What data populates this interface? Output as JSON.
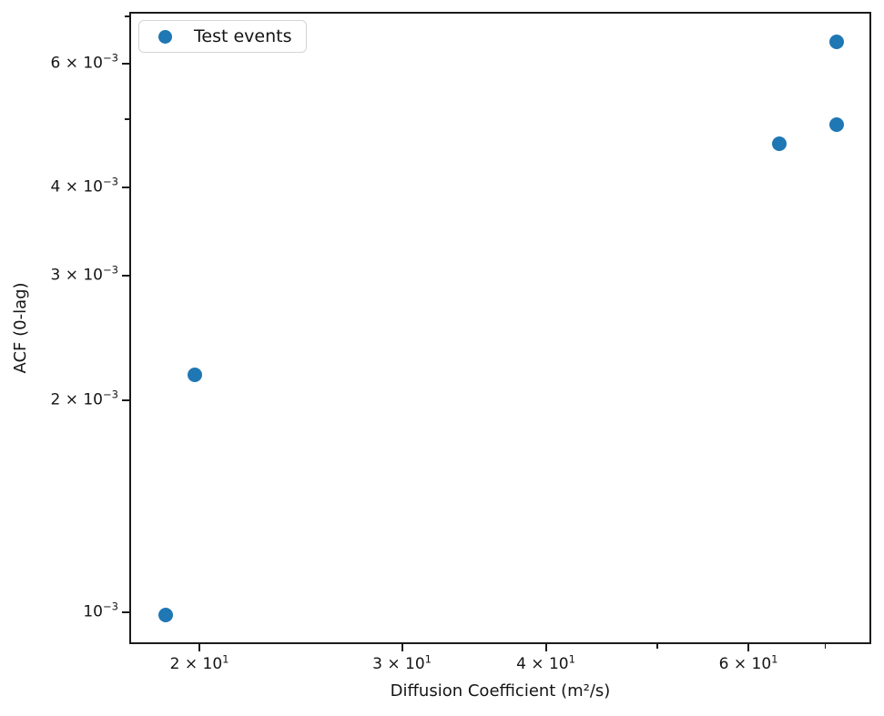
{
  "figure": {
    "background": "#ffffff"
  },
  "chart_data": {
    "type": "scatter",
    "title": "",
    "xlabel": "Diffusion Coefficient (m²/s)",
    "ylabel": "ACF (0-lag)",
    "xscale": "log",
    "yscale": "log",
    "xlim": [
      17.38,
      76.72
    ],
    "ylim": [
      0.0009015,
      0.007105
    ],
    "grid": false,
    "axis_color": "#1b1b1b",
    "text_color": "#151515",
    "legend": {
      "position": "upper-left",
      "entries": [
        {
          "label": "Test events",
          "marker": "circle-icon",
          "color": "#1f77b4"
        }
      ]
    },
    "series": [
      {
        "name": "Test events",
        "color": "#1f77b4",
        "marker": "circle",
        "points": [
          {
            "x": 18.7,
            "y": 0.00099
          },
          {
            "x": 19.8,
            "y": 0.00217
          },
          {
            "x": 63.8,
            "y": 0.00462
          },
          {
            "x": 71.6,
            "y": 0.00492
          },
          {
            "x": 71.6,
            "y": 0.00644
          }
        ]
      }
    ],
    "x_ticks": [
      {
        "value": 20,
        "major": true,
        "mantissa": "2 × 10",
        "exponent": "1"
      },
      {
        "value": 30,
        "major": true,
        "mantissa": "3 × 10",
        "exponent": "1"
      },
      {
        "value": 40,
        "major": true,
        "mantissa": "4 × 10",
        "exponent": "1"
      },
      {
        "value": 50,
        "major": false,
        "mantissa": null,
        "exponent": null
      },
      {
        "value": 60,
        "major": true,
        "mantissa": "6 × 10",
        "exponent": "1"
      },
      {
        "value": 70,
        "major": false,
        "mantissa": null,
        "exponent": null
      }
    ],
    "y_ticks": [
      {
        "value": 0.007,
        "major": false,
        "mantissa": null,
        "exponent": null
      },
      {
        "value": 0.006,
        "major": true,
        "mantissa": "6 × 10",
        "exponent": "−3"
      },
      {
        "value": 0.005,
        "major": false,
        "mantissa": null,
        "exponent": null
      },
      {
        "value": 0.004,
        "major": true,
        "mantissa": "4 × 10",
        "exponent": "−3"
      },
      {
        "value": 0.003,
        "major": true,
        "mantissa": "3 × 10",
        "exponent": "−3"
      },
      {
        "value": 0.002,
        "major": true,
        "mantissa": "2 × 10",
        "exponent": "−3"
      },
      {
        "value": 0.001,
        "major": true,
        "mantissa": "10",
        "exponent": "−3"
      }
    ]
  }
}
